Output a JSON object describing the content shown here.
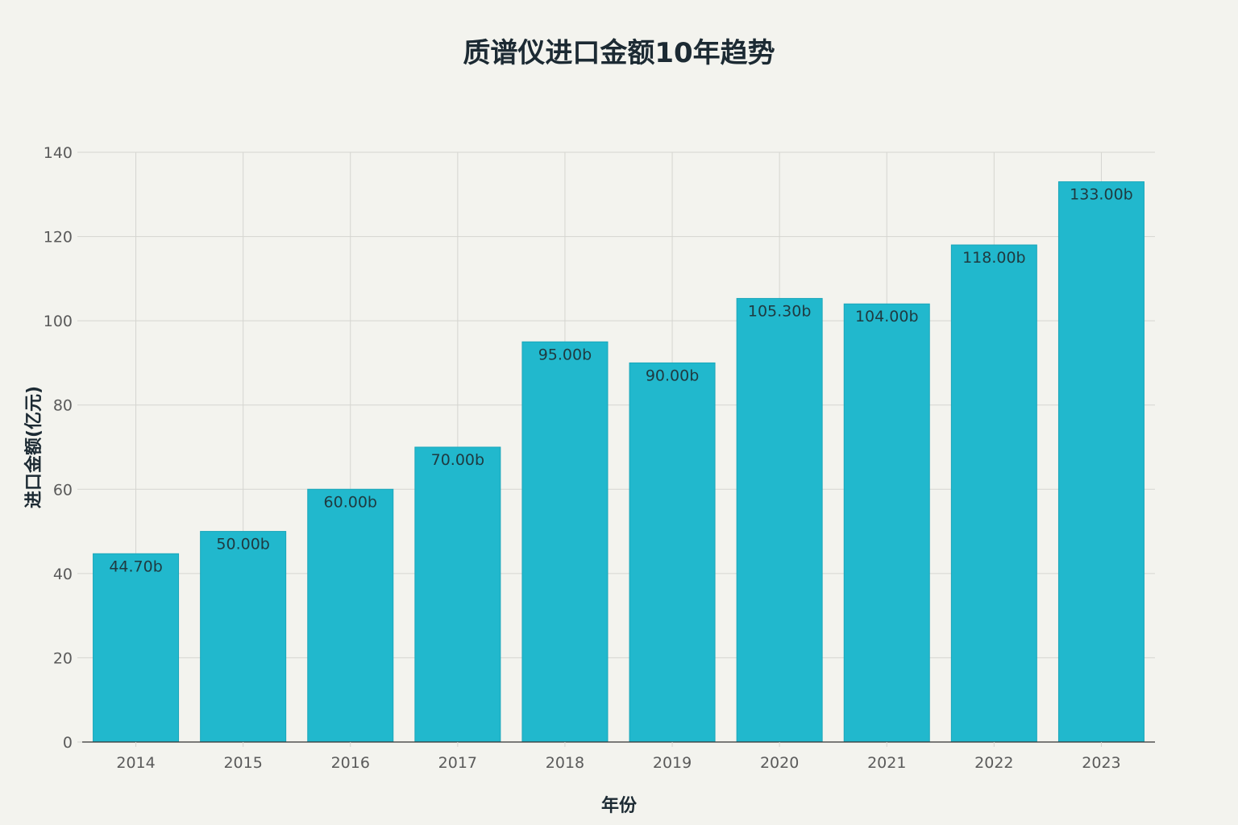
{
  "colors": {
    "background": "#f3f3ee",
    "bar": "#21b8cd",
    "bar_edge": "#1aa6ba",
    "grid": "#d5d5d0",
    "axis": "#333333",
    "tick_text": "#5a5a5a",
    "label_text": "#1f3a40",
    "title_text": "#1c2a33"
  },
  "chart_data": {
    "type": "bar",
    "title": "质谱仪进口金额10年趋势",
    "xlabel": "年份",
    "ylabel": "进口金额(亿元)",
    "categories": [
      "2014",
      "2015",
      "2016",
      "2017",
      "2018",
      "2019",
      "2020",
      "2021",
      "2022",
      "2023"
    ],
    "values": [
      44.7,
      50.0,
      60.0,
      70.0,
      95.0,
      90.0,
      105.3,
      104.0,
      118.0,
      133.0
    ],
    "data_labels": [
      "44.70b",
      "50.00b",
      "60.00b",
      "70.00b",
      "95.00b",
      "90.00b",
      "105.30b",
      "104.00b",
      "118.00b",
      "133.00b"
    ],
    "ylim": [
      0,
      140
    ],
    "yticks": [
      0,
      20,
      40,
      60,
      80,
      100,
      120,
      140
    ],
    "grid": true,
    "legend": "none"
  }
}
